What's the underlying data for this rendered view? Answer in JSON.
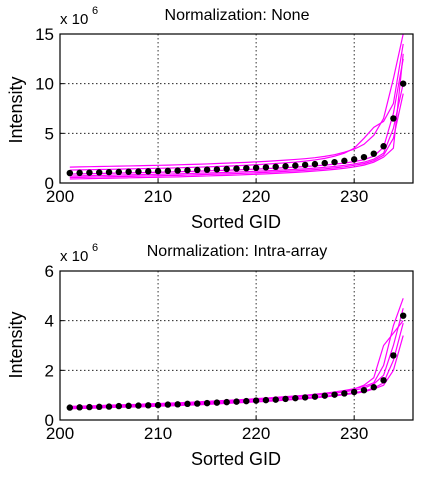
{
  "chart_data": [
    {
      "type": "line",
      "title": "Normalization: None",
      "xlabel": "Sorted GID",
      "ylabel": "Intensity",
      "exponent_label": "x 10",
      "exponent_power": "6",
      "xlim": [
        200,
        236
      ],
      "ylim": [
        0,
        15
      ],
      "xticks": [
        200,
        210,
        220,
        230
      ],
      "yticks": [
        0,
        5,
        10,
        15
      ],
      "grid": true,
      "colors": {
        "lines": "#ff00ff",
        "markers": "#000000"
      },
      "x": [
        201,
        202,
        203,
        204,
        205,
        206,
        207,
        208,
        209,
        210,
        211,
        212,
        213,
        214,
        215,
        216,
        217,
        218,
        219,
        220,
        221,
        222,
        223,
        224,
        225,
        226,
        227,
        228,
        229,
        230,
        231,
        232,
        233,
        234,
        235
      ],
      "median": [
        1.0,
        1.02,
        1.04,
        1.06,
        1.09,
        1.11,
        1.13,
        1.15,
        1.17,
        1.2,
        1.22,
        1.25,
        1.28,
        1.31,
        1.34,
        1.37,
        1.41,
        1.45,
        1.49,
        1.53,
        1.58,
        1.63,
        1.69,
        1.75,
        1.82,
        1.9,
        2.0,
        2.1,
        2.23,
        2.38,
        2.6,
        2.95,
        3.7,
        6.5,
        10.0
      ],
      "series": [
        {
          "values": [
            1.6,
            1.62,
            1.64,
            1.66,
            1.68,
            1.7,
            1.72,
            1.74,
            1.76,
            1.78,
            1.8,
            1.83,
            1.86,
            1.89,
            1.92,
            1.96,
            2.0,
            2.04,
            2.08,
            2.13,
            2.18,
            2.24,
            2.3,
            2.37,
            2.45,
            2.55,
            2.68,
            2.85,
            3.1,
            3.4,
            3.9,
            4.8,
            6.5,
            10.5,
            15.0
          ]
        },
        {
          "values": [
            1.3,
            1.32,
            1.34,
            1.36,
            1.38,
            1.4,
            1.42,
            1.44,
            1.46,
            1.48,
            1.5,
            1.53,
            1.56,
            1.59,
            1.62,
            1.66,
            1.7,
            1.74,
            1.79,
            1.84,
            1.9,
            1.96,
            2.03,
            2.1,
            2.2,
            2.32,
            2.48,
            2.7,
            3.0,
            3.5,
            4.5,
            5.6,
            6.2,
            8.0,
            14.0
          ]
        },
        {
          "values": [
            0.9,
            0.92,
            0.94,
            0.96,
            0.98,
            1.0,
            1.02,
            1.04,
            1.06,
            1.08,
            1.1,
            1.13,
            1.16,
            1.19,
            1.22,
            1.25,
            1.28,
            1.32,
            1.36,
            1.4,
            1.45,
            1.5,
            1.55,
            1.6,
            1.66,
            1.73,
            1.8,
            1.9,
            2.0,
            2.15,
            2.35,
            2.7,
            3.6,
            7.0,
            12.5
          ]
        },
        {
          "values": [
            0.7,
            0.72,
            0.74,
            0.76,
            0.78,
            0.8,
            0.82,
            0.84,
            0.86,
            0.88,
            0.9,
            0.92,
            0.95,
            0.98,
            1.01,
            1.04,
            1.07,
            1.1,
            1.14,
            1.18,
            1.22,
            1.27,
            1.32,
            1.37,
            1.43,
            1.5,
            1.58,
            1.67,
            1.78,
            1.92,
            2.1,
            2.4,
            3.0,
            5.5,
            10.0
          ]
        },
        {
          "values": [
            0.55,
            0.57,
            0.59,
            0.61,
            0.63,
            0.65,
            0.67,
            0.69,
            0.71,
            0.73,
            0.75,
            0.77,
            0.8,
            0.83,
            0.86,
            0.89,
            0.92,
            0.95,
            0.99,
            1.03,
            1.07,
            1.12,
            1.17,
            1.22,
            1.28,
            1.35,
            1.43,
            1.52,
            1.63,
            1.78,
            1.95,
            2.25,
            2.8,
            4.5,
            9.0
          ]
        },
        {
          "values": [
            0.4,
            0.42,
            0.44,
            0.46,
            0.48,
            0.5,
            0.52,
            0.54,
            0.56,
            0.58,
            0.6,
            0.62,
            0.65,
            0.68,
            0.71,
            0.74,
            0.77,
            0.8,
            0.84,
            0.88,
            0.92,
            0.97,
            1.02,
            1.07,
            1.13,
            1.2,
            1.28,
            1.37,
            1.48,
            1.62,
            1.8,
            2.1,
            2.6,
            3.5,
            13.0
          ]
        }
      ]
    },
    {
      "type": "line",
      "title": "Normalization: Intra-array",
      "xlabel": "Sorted GID",
      "ylabel": "Intensity",
      "exponent_label": "x 10",
      "exponent_power": "6",
      "xlim": [
        200,
        236
      ],
      "ylim": [
        0,
        6
      ],
      "xticks": [
        200,
        210,
        220,
        230
      ],
      "yticks": [
        0,
        2,
        4,
        6
      ],
      "grid": true,
      "colors": {
        "lines": "#ff00ff",
        "markers": "#000000"
      },
      "x": [
        201,
        202,
        203,
        204,
        205,
        206,
        207,
        208,
        209,
        210,
        211,
        212,
        213,
        214,
        215,
        216,
        217,
        218,
        219,
        220,
        221,
        222,
        223,
        224,
        225,
        226,
        227,
        228,
        229,
        230,
        231,
        232,
        233,
        234,
        235
      ],
      "median": [
        0.5,
        0.51,
        0.52,
        0.53,
        0.54,
        0.56,
        0.57,
        0.58,
        0.59,
        0.6,
        0.62,
        0.63,
        0.65,
        0.66,
        0.68,
        0.7,
        0.72,
        0.74,
        0.76,
        0.78,
        0.8,
        0.82,
        0.85,
        0.88,
        0.91,
        0.94,
        0.98,
        1.02,
        1.07,
        1.13,
        1.2,
        1.32,
        1.6,
        2.6,
        4.2
      ],
      "series": [
        {
          "values": [
            0.55,
            0.56,
            0.57,
            0.58,
            0.6,
            0.61,
            0.62,
            0.63,
            0.65,
            0.66,
            0.68,
            0.69,
            0.71,
            0.73,
            0.75,
            0.77,
            0.79,
            0.81,
            0.83,
            0.86,
            0.88,
            0.91,
            0.94,
            0.97,
            1.0,
            1.04,
            1.08,
            1.13,
            1.19,
            1.26,
            1.35,
            1.5,
            2.2,
            3.8,
            4.9
          ]
        },
        {
          "values": [
            0.52,
            0.53,
            0.54,
            0.55,
            0.57,
            0.58,
            0.59,
            0.6,
            0.62,
            0.63,
            0.65,
            0.66,
            0.68,
            0.7,
            0.72,
            0.74,
            0.76,
            0.78,
            0.8,
            0.82,
            0.85,
            0.87,
            0.9,
            0.93,
            0.96,
            1.0,
            1.04,
            1.08,
            1.13,
            1.2,
            1.28,
            1.45,
            1.8,
            3.0,
            4.5
          ]
        },
        {
          "values": [
            0.48,
            0.49,
            0.5,
            0.51,
            0.52,
            0.54,
            0.55,
            0.56,
            0.57,
            0.58,
            0.6,
            0.61,
            0.63,
            0.64,
            0.66,
            0.68,
            0.7,
            0.72,
            0.74,
            0.76,
            0.78,
            0.8,
            0.83,
            0.86,
            0.89,
            0.92,
            0.96,
            1.0,
            1.05,
            1.1,
            1.17,
            1.28,
            1.5,
            2.4,
            3.9
          ]
        },
        {
          "values": [
            0.45,
            0.46,
            0.47,
            0.48,
            0.5,
            0.51,
            0.52,
            0.53,
            0.54,
            0.56,
            0.57,
            0.58,
            0.6,
            0.61,
            0.63,
            0.65,
            0.67,
            0.69,
            0.71,
            0.73,
            0.75,
            0.77,
            0.8,
            0.83,
            0.86,
            0.89,
            0.93,
            0.97,
            1.02,
            1.07,
            1.13,
            1.25,
            1.4,
            2.0,
            3.4
          ]
        },
        {
          "values": [
            0.5,
            0.51,
            0.52,
            0.53,
            0.55,
            0.56,
            0.58,
            0.59,
            0.6,
            0.62,
            0.63,
            0.65,
            0.66,
            0.68,
            0.7,
            0.72,
            0.74,
            0.76,
            0.79,
            0.81,
            0.84,
            0.86,
            0.89,
            0.92,
            0.95,
            0.99,
            1.03,
            1.08,
            1.15,
            1.25,
            1.4,
            1.7,
            3.0,
            3.5,
            4.0
          ]
        }
      ]
    }
  ]
}
